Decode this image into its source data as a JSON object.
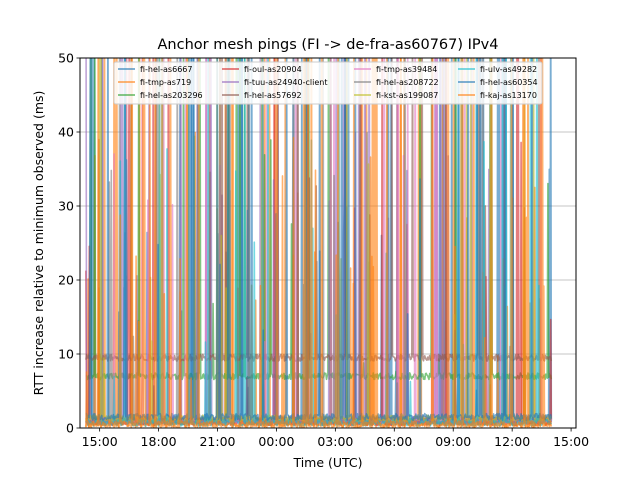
{
  "chart_data": {
    "type": "line",
    "title": "Anchor mesh pings (FI -> de-fra-as60767) IPv4",
    "xlabel": "Time (UTC)",
    "ylabel": "RTT increase relative to minimum observed (ms)",
    "xlim": [
      "14:00",
      "15:15 (+1 day)"
    ],
    "ylim": [
      0,
      50
    ],
    "x_ticks": [
      "15:00",
      "18:00",
      "21:00",
      "00:00",
      "03:00",
      "06:00",
      "09:00",
      "12:00",
      "15:00"
    ],
    "x_tick_hours": [
      15,
      18,
      21,
      24,
      27,
      30,
      33,
      36,
      39
    ],
    "y_ticks": [
      0,
      10,
      20,
      30,
      40,
      50
    ],
    "grid": "y-major",
    "legend_position": "top",
    "legend_columns": 4,
    "data_span_hours": [
      14.3,
      38.0
    ],
    "series": [
      {
        "name": "fi-hel-as6667",
        "color": "#1f77b4",
        "baseline": 1.0,
        "spike_count": 26
      },
      {
        "name": "fi-tmp-as719",
        "color": "#ff7f0e",
        "baseline": 0.6,
        "spike_count": 30
      },
      {
        "name": "fi-hel-as203296",
        "color": "#2ca02c",
        "baseline": 7.0,
        "spike_count": 12
      },
      {
        "name": "fi-oul-as20904",
        "color": "#d62728",
        "baseline": 0.8,
        "spike_count": 16
      },
      {
        "name": "fi-tuu-as24940-client",
        "color": "#9467bd",
        "baseline": 1.2,
        "spike_count": 16
      },
      {
        "name": "fi-hel-as57692",
        "color": "#8c564b",
        "baseline": 9.5,
        "spike_count": 16
      },
      {
        "name": "fi-tmp-as39484",
        "color": "#e377c2",
        "baseline": 1.0,
        "spike_count": 14
      },
      {
        "name": "fi-hel-as208722",
        "color": "#7f7f7f",
        "baseline": 0.9,
        "spike_count": 14
      },
      {
        "name": "fi-kst-as199087",
        "color": "#bcbd22",
        "baseline": 1.3,
        "spike_count": 16
      },
      {
        "name": "fi-ulv-as49282",
        "color": "#17becf",
        "baseline": 0.7,
        "spike_count": 20
      },
      {
        "name": "fi-hel-as60354",
        "color": "#1f77b4",
        "baseline": 1.5,
        "spike_count": 28
      },
      {
        "name": "fi-kaj-as13170",
        "color": "#ff7f0e",
        "baseline": 0.5,
        "spike_count": 34
      }
    ]
  }
}
